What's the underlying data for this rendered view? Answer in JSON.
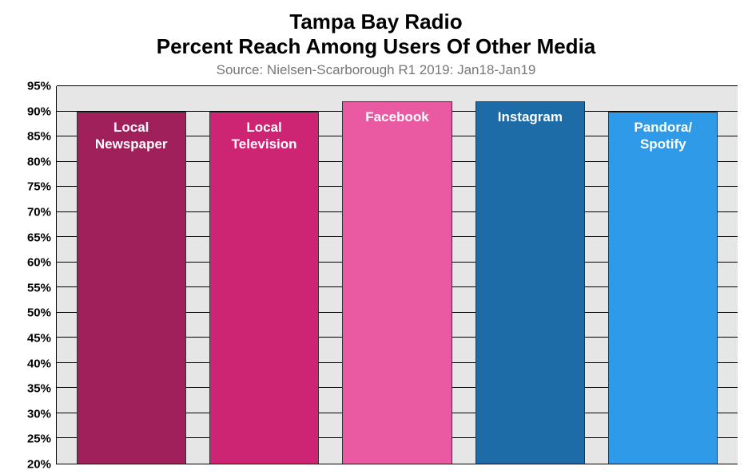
{
  "chart": {
    "type": "bar",
    "title_line1": "Tampa Bay Radio",
    "title_line2": "Percent Reach Among Users Of Other Media",
    "title_fontsize": 26,
    "subtitle": "Source: Nielsen-Scarborough R1 2019: Jan18-Jan19",
    "subtitle_fontsize": 17,
    "subtitle_color": "#777777",
    "background_color": "#e6e6e6",
    "grid_color": "#000000",
    "ylim_min": 20,
    "ylim_max": 95,
    "ytick_step": 5,
    "ytick_suffix": "%",
    "ytick_fontsize": 15,
    "bar_width_pct": 16.5,
    "bar_label_fontsize": 17,
    "bars": [
      {
        "label": "Local\nNewspaper",
        "value": 90,
        "color": "#a0205c"
      },
      {
        "label": "Local\nTelevision",
        "value": 90,
        "color": "#cd2474"
      },
      {
        "label": "Facebook",
        "value": 92,
        "color": "#ea5aa3"
      },
      {
        "label": "Instagram",
        "value": 92,
        "color": "#1d6ca7"
      },
      {
        "label": "Pandora/\nSpotify",
        "value": 90,
        "color": "#2f9ae8"
      }
    ]
  }
}
